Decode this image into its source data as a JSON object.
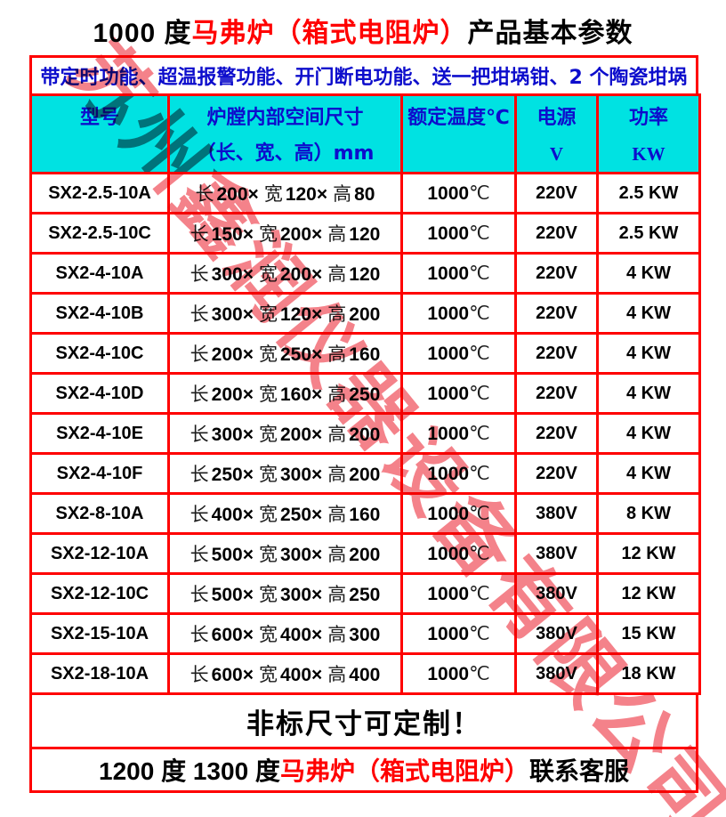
{
  "title": {
    "prefix": "1000 度",
    "highlight": "马弗炉（箱式电阻炉）",
    "suffix": "产品基本参数"
  },
  "banner": {
    "text": "带定时功能、超温报警功能、开门断电功能、送一把坩埚钳、2 个陶瓷坩埚"
  },
  "table": {
    "headers": {
      "model": "型号",
      "size_line1": "炉膛内部空间尺寸",
      "size_line2": "（长、宽、高）mm",
      "temp": "额定温度℃",
      "source_line1": "电源",
      "source_line2": "V",
      "power_line1": "功率",
      "power_line2": "KW"
    },
    "dim_labels": {
      "length": "长",
      "width": "宽",
      "height": "高",
      "times": "×"
    },
    "temp_unit": "℃",
    "rows": [
      {
        "model": "SX2-2.5-10A",
        "length": "200",
        "width": "120",
        "height": "80",
        "temp": "1000",
        "voltage": "220V",
        "power": "2.5 KW"
      },
      {
        "model": "SX2-2.5-10C",
        "length": "150",
        "width": "200",
        "height": "120",
        "temp": "1000",
        "voltage": "220V",
        "power": "2.5 KW"
      },
      {
        "model": "SX2-4-10A",
        "length": "300",
        "width": "200",
        "height": "120",
        "temp": "1000",
        "voltage": "220V",
        "power": "4 KW"
      },
      {
        "model": "SX2-4-10B",
        "length": "300",
        "width": "120",
        "height": "200",
        "temp": "1000",
        "voltage": "220V",
        "power": "4 KW"
      },
      {
        "model": "SX2-4-10C",
        "length": "200",
        "width": "250",
        "height": "160",
        "temp": "1000",
        "voltage": "220V",
        "power": "4 KW"
      },
      {
        "model": "SX2-4-10D",
        "length": "200",
        "width": "160",
        "height": "250",
        "temp": "1000",
        "voltage": "220V",
        "power": "4 KW"
      },
      {
        "model": "SX2-4-10E",
        "length": "300",
        "width": "200",
        "height": "200",
        "temp": "1000",
        "voltage": "220V",
        "power": "4 KW"
      },
      {
        "model": "SX2-4-10F",
        "length": "250",
        "width": "300",
        "height": "200",
        "temp": "1000",
        "voltage": "220V",
        "power": "4 KW"
      },
      {
        "model": "SX2-8-10A",
        "length": "400",
        "width": "250",
        "height": "160",
        "temp": "1000",
        "voltage": "380V",
        "power": "8 KW"
      },
      {
        "model": "SX2-12-10A",
        "length": "500",
        "width": "300",
        "height": "200",
        "temp": "1000",
        "voltage": "380V",
        "power": "12 KW"
      },
      {
        "model": "SX2-12-10C",
        "length": "500",
        "width": "300",
        "height": "250",
        "temp": "1000",
        "voltage": "380V",
        "power": "12 KW"
      },
      {
        "model": "SX2-15-10A",
        "length": "600",
        "width": "400",
        "height": "300",
        "temp": "1000",
        "voltage": "380V",
        "power": "15 KW"
      },
      {
        "model": "SX2-18-10A",
        "length": "600",
        "width": "400",
        "height": "400",
        "temp": "1000",
        "voltage": "380V",
        "power": "18 KW"
      }
    ]
  },
  "footer": {
    "custom_note": "非标尺寸可定制！",
    "contact_prefix": "1200 度 1300 度",
    "contact_highlight": "马弗炉（箱式电阻炉）",
    "contact_suffix": "联系客服"
  },
  "watermark": {
    "text": "苏州鑫润仪器设备有限公司"
  },
  "colors": {
    "border": "#ff0000",
    "header_bg": "#00e2e2",
    "header_text": "#0d0dcc",
    "highlight_red": "#ff0000",
    "watermark_pink": "#f4828a",
    "text_black": "#000000"
  }
}
